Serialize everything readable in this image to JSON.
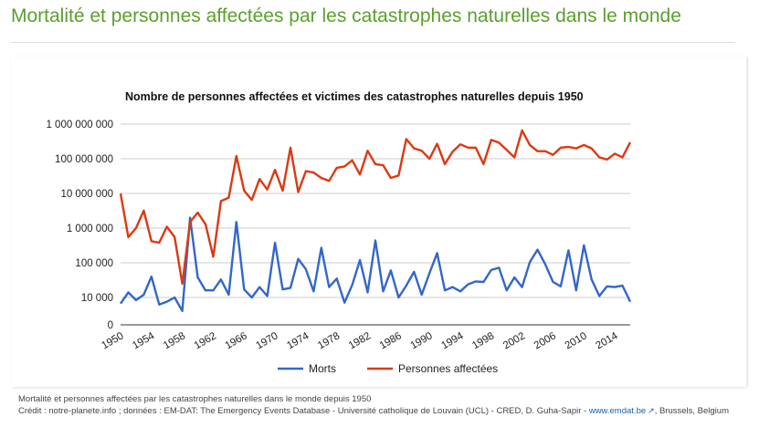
{
  "page": {
    "title": "Mortalité et personnes affectées par les catastrophes naturelles dans le monde"
  },
  "caption": {
    "line1": "Mortalité et personnes affectées par les catastrophes naturelles dans le monde depuis 1950",
    "credit_prefix": "Crédit : notre-planete.info ; données : EM-DAT: The Emergency Events Database - Université catholique de Louvain (UCL) - CRED, D. Guha-Sapir - ",
    "link_text": "www.emdat.be",
    "credit_suffix": ", Brussels, Belgium",
    "link_icon": "external-link-icon"
  },
  "colors": {
    "title": "#5aa02c",
    "deaths": "#3366cc",
    "affected": "#dc3912"
  },
  "chart_data": {
    "type": "line",
    "title": "Nombre de personnes affectées et victimes des catastrophes naturelles depuis 1950",
    "xlabel": "",
    "ylabel": "",
    "y_scale": "log",
    "ylim": [
      0,
      1000000000
    ],
    "xlim": [
      1950,
      2016
    ],
    "y_ticks": [
      0,
      10000,
      100000,
      1000000,
      10000000,
      100000000,
      1000000000
    ],
    "y_tick_labels": [
      "0",
      "10 000",
      "100 000",
      "1 000 000",
      "10 000 000",
      "100 000 000",
      "1 000 000 000"
    ],
    "x_ticks": [
      1950,
      1954,
      1958,
      1962,
      1966,
      1970,
      1974,
      1978,
      1982,
      1986,
      1990,
      1994,
      1998,
      2002,
      2006,
      2010,
      2014
    ],
    "x_tick_labels": [
      "1950",
      "1954",
      "1958",
      "1962",
      "1966",
      "1970",
      "1974",
      "1978",
      "1982",
      "1986",
      "1990",
      "1994",
      "1998",
      "2002",
      "2006",
      "2010",
      "2014"
    ],
    "grid": true,
    "legend_position": "bottom",
    "x": [
      1950,
      1951,
      1952,
      1953,
      1954,
      1955,
      1956,
      1957,
      1958,
      1959,
      1960,
      1961,
      1962,
      1963,
      1964,
      1965,
      1966,
      1967,
      1968,
      1969,
      1970,
      1971,
      1972,
      1973,
      1974,
      1975,
      1976,
      1977,
      1978,
      1979,
      1980,
      1981,
      1982,
      1983,
      1984,
      1985,
      1986,
      1987,
      1988,
      1989,
      1990,
      1991,
      1992,
      1993,
      1994,
      1995,
      1996,
      1997,
      1998,
      1999,
      2000,
      2001,
      2002,
      2003,
      2004,
      2005,
      2006,
      2007,
      2008,
      2009,
      2010,
      2011,
      2012,
      2013,
      2014,
      2015,
      2016
    ],
    "series": [
      {
        "name": "Morts",
        "color": "#3366cc",
        "values": [
          6000,
          14000,
          8000,
          12000,
          40000,
          5500,
          7000,
          10000,
          3200,
          2000000,
          38000,
          16000,
          16000,
          33000,
          12000,
          1500000,
          17000,
          10000,
          20000,
          11000,
          380000,
          17000,
          19000,
          130000,
          65000,
          15000,
          270000,
          20000,
          35000,
          6500,
          23000,
          120000,
          14000,
          440000,
          15000,
          60000,
          10000,
          22000,
          55000,
          12000,
          50000,
          190000,
          16000,
          20000,
          15000,
          24000,
          29000,
          28000,
          62000,
          72000,
          16000,
          38000,
          20000,
          105000,
          240000,
          90000,
          28000,
          21000,
          230000,
          16000,
          320000,
          33000,
          11000,
          21000,
          20000,
          22000,
          7000
        ]
      },
      {
        "name": "Personnes affectées",
        "color": "#dc3912",
        "values": [
          10000000,
          550000,
          1000000,
          3200000,
          420000,
          380000,
          1100000,
          550000,
          25000,
          1500000,
          2800000,
          1300000,
          150000,
          6000000,
          7500000,
          120000000,
          12000000,
          6500000,
          26000000,
          13000000,
          48000000,
          12000000,
          210000000,
          11000000,
          44000000,
          40000000,
          28000000,
          23000000,
          55000000,
          60000000,
          90000000,
          35000000,
          170000000,
          70000000,
          65000000,
          28000000,
          33000000,
          370000000,
          200000000,
          170000000,
          100000000,
          270000000,
          70000000,
          160000000,
          260000000,
          210000000,
          210000000,
          70000000,
          350000000,
          290000000,
          180000000,
          110000000,
          660000000,
          250000000,
          165000000,
          165000000,
          130000000,
          210000000,
          220000000,
          200000000,
          250000000,
          200000000,
          110000000,
          95000000,
          140000000,
          110000000,
          300000000
        ]
      }
    ]
  }
}
